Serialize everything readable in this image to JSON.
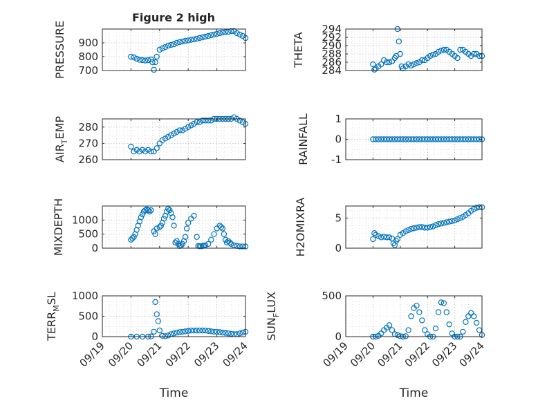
{
  "figure_title": "Figure 2 high",
  "x_axis": {
    "label": "Time",
    "ticks": [
      "09/19",
      "09/20",
      "09/21",
      "09/22",
      "09/23",
      "09/24"
    ],
    "tick_values": [
      0,
      1,
      2,
      3,
      4,
      5
    ],
    "range": [
      0,
      5
    ],
    "unit": "days from 09/19"
  },
  "marker_color": "#0072bd",
  "chart_data": [
    {
      "type": "scatter",
      "ylabel": "PRESSURE",
      "yticks": [
        "700",
        "800",
        "900"
      ],
      "ytick_values": [
        700,
        800,
        900
      ],
      "ylim": [
        700,
        1000
      ],
      "x": [
        1.0,
        1.1,
        1.2,
        1.3,
        1.4,
        1.5,
        1.6,
        1.7,
        1.75,
        1.8,
        1.85,
        1.9,
        2.0,
        2.1,
        2.2,
        2.3,
        2.4,
        2.5,
        2.6,
        2.7,
        2.8,
        2.9,
        3.0,
        3.1,
        3.2,
        3.3,
        3.4,
        3.5,
        3.6,
        3.7,
        3.8,
        3.9,
        4.0,
        4.1,
        4.2,
        4.3,
        4.4,
        4.5,
        4.6,
        4.7,
        4.8,
        4.9,
        5.0
      ],
      "y": [
        800,
        795,
        785,
        778,
        775,
        772,
        775,
        780,
        760,
        705,
        760,
        800,
        850,
        860,
        870,
        880,
        885,
        890,
        900,
        905,
        910,
        915,
        918,
        922,
        925,
        930,
        935,
        940,
        945,
        950,
        955,
        960,
        965,
        970,
        975,
        978,
        980,
        985,
        985,
        970,
        960,
        950,
        935
      ]
    },
    {
      "type": "scatter",
      "ylabel": "THETA",
      "yticks": [
        "284",
        "286",
        "288",
        "290",
        "292",
        "294"
      ],
      "ytick_values": [
        284,
        286,
        288,
        290,
        292,
        294
      ],
      "ylim": [
        284,
        294
      ],
      "x": [
        1.0,
        1.05,
        1.1,
        1.2,
        1.3,
        1.4,
        1.5,
        1.6,
        1.7,
        1.8,
        1.85,
        1.9,
        1.95,
        2.0,
        2.05,
        2.1,
        2.2,
        2.3,
        2.4,
        2.5,
        2.6,
        2.7,
        2.8,
        2.9,
        3.0,
        3.1,
        3.2,
        3.3,
        3.4,
        3.5,
        3.6,
        3.7,
        3.8,
        3.9,
        4.0,
        4.1,
        4.2,
        4.3,
        4.4,
        4.5,
        4.6,
        4.7,
        4.8,
        4.9,
        5.0
      ],
      "y": [
        285.5,
        284.2,
        284.5,
        285,
        285.5,
        286.5,
        286,
        286,
        286.2,
        287,
        287.5,
        294,
        291,
        288,
        285,
        284.5,
        285,
        285.5,
        285.2,
        285.5,
        285.8,
        286,
        286.5,
        286.5,
        287,
        287.5,
        287.8,
        288,
        288.5,
        288.8,
        289,
        289,
        288.5,
        288,
        287.5,
        287,
        289,
        289,
        288.5,
        288,
        287.5,
        288,
        288,
        287.5,
        287.5
      ]
    },
    {
      "type": "scatter",
      "ylabel": "AIR_TEMP",
      "yticks": [
        "260",
        "270",
        "280"
      ],
      "ytick_values": [
        260,
        270,
        280
      ],
      "ylim": [
        260,
        285
      ],
      "x": [
        1.0,
        1.1,
        1.2,
        1.3,
        1.4,
        1.5,
        1.6,
        1.7,
        1.8,
        1.9,
        2.0,
        2.1,
        2.2,
        2.3,
        2.4,
        2.5,
        2.6,
        2.7,
        2.8,
        2.9,
        3.0,
        3.1,
        3.2,
        3.3,
        3.4,
        3.5,
        3.6,
        3.7,
        3.8,
        3.9,
        4.0,
        4.1,
        4.2,
        4.3,
        4.4,
        4.5,
        4.6,
        4.7,
        4.8,
        4.9,
        5.0
      ],
      "y": [
        268,
        265,
        266,
        265,
        266,
        265,
        266,
        265,
        265,
        267,
        270,
        272,
        273,
        274,
        275,
        276,
        277,
        278,
        278,
        279,
        280,
        281,
        282,
        283,
        283,
        284,
        284,
        284,
        284,
        285,
        285,
        285,
        285,
        285,
        285,
        285,
        286,
        285,
        284,
        283,
        282
      ]
    },
    {
      "type": "scatter",
      "ylabel": "RAINFALL",
      "yticks": [
        "-1",
        "0",
        "1"
      ],
      "ytick_values": [
        -1,
        0,
        1
      ],
      "ylim": [
        -1,
        1
      ],
      "x": [
        1.0,
        1.1,
        1.2,
        1.3,
        1.4,
        1.5,
        1.6,
        1.7,
        1.8,
        1.9,
        2.0,
        2.1,
        2.2,
        2.3,
        2.4,
        2.5,
        2.6,
        2.7,
        2.8,
        2.9,
        3.0,
        3.1,
        3.2,
        3.3,
        3.4,
        3.5,
        3.6,
        3.7,
        3.8,
        3.9,
        4.0,
        4.1,
        4.2,
        4.3,
        4.4,
        4.5,
        4.6,
        4.7,
        4.8,
        4.9,
        5.0
      ],
      "y": [
        0,
        0,
        0,
        0,
        0,
        0,
        0,
        0,
        0,
        0,
        0,
        0,
        0,
        0,
        0,
        0,
        0,
        0,
        0,
        0,
        0,
        0,
        0,
        0,
        0,
        0,
        0,
        0,
        0,
        0,
        0,
        0,
        0,
        0,
        0,
        0,
        0,
        0,
        0,
        0,
        0
      ]
    },
    {
      "type": "scatter",
      "ylabel": "MIXDEPTH",
      "yticks": [
        "0",
        "500",
        "1000"
      ],
      "ytick_values": [
        0,
        500,
        1000
      ],
      "ylim": [
        0,
        1500
      ],
      "x": [
        1.0,
        1.05,
        1.1,
        1.15,
        1.2,
        1.25,
        1.3,
        1.35,
        1.4,
        1.45,
        1.5,
        1.55,
        1.6,
        1.65,
        1.7,
        1.8,
        1.85,
        1.9,
        2.0,
        2.05,
        2.1,
        2.15,
        2.2,
        2.25,
        2.3,
        2.35,
        2.4,
        2.45,
        2.5,
        2.55,
        2.6,
        2.65,
        2.7,
        2.75,
        2.8,
        2.85,
        2.9,
        2.95,
        3.0,
        3.1,
        3.2,
        3.3,
        3.35,
        3.4,
        3.45,
        3.5,
        3.55,
        3.6,
        3.7,
        3.8,
        3.9,
        4.0,
        4.1,
        4.15,
        4.2,
        4.25,
        4.3,
        4.35,
        4.4,
        4.45,
        4.5,
        4.6,
        4.7,
        4.8,
        4.9,
        5.0
      ],
      "y": [
        300,
        350,
        400,
        500,
        650,
        800,
        950,
        1100,
        1200,
        1300,
        1350,
        1380,
        1350,
        1300,
        1350,
        600,
        500,
        700,
        750,
        800,
        900,
        1050,
        1150,
        1300,
        1400,
        1350,
        1250,
        1100,
        800,
        200,
        250,
        150,
        80,
        100,
        150,
        250,
        400,
        700,
        900,
        1050,
        1150,
        400,
        80,
        70,
        70,
        80,
        90,
        100,
        150,
        300,
        500,
        700,
        800,
        750,
        700,
        500,
        300,
        200,
        250,
        200,
        150,
        100,
        80,
        60,
        60,
        60
      ]
    },
    {
      "type": "scatter",
      "ylabel": "H2OMIXRA",
      "yticks": [
        "0",
        "5"
      ],
      "ytick_values": [
        0,
        5
      ],
      "ylim": [
        0,
        7
      ],
      "x": [
        1.0,
        1.05,
        1.1,
        1.2,
        1.3,
        1.4,
        1.5,
        1.6,
        1.7,
        1.75,
        1.8,
        1.85,
        1.9,
        2.0,
        2.1,
        2.2,
        2.3,
        2.4,
        2.5,
        2.6,
        2.7,
        2.8,
        2.9,
        3.0,
        3.1,
        3.2,
        3.3,
        3.4,
        3.5,
        3.6,
        3.7,
        3.8,
        3.9,
        4.0,
        4.1,
        4.2,
        4.3,
        4.4,
        4.5,
        4.6,
        4.7,
        4.8,
        4.9,
        5.0
      ],
      "y": [
        1.5,
        2.5,
        2.2,
        2.0,
        1.8,
        1.9,
        1.8,
        1.8,
        1.6,
        0.8,
        0.5,
        1.2,
        1.5,
        2.2,
        2.5,
        2.8,
        3.0,
        3.2,
        3.3,
        3.4,
        3.5,
        3.5,
        3.4,
        3.4,
        3.5,
        3.6,
        3.8,
        4.0,
        4.1,
        4.2,
        4.3,
        4.4,
        4.5,
        4.6,
        4.8,
        5.0,
        5.2,
        5.5,
        5.8,
        6.2,
        6.5,
        6.7,
        6.8,
        6.8
      ]
    },
    {
      "type": "scatter",
      "ylabel": "TERR_MSL",
      "yticks": [
        "0",
        "500",
        "1000"
      ],
      "ytick_values": [
        0,
        500,
        1000
      ],
      "ylim": [
        0,
        1000
      ],
      "x": [
        1.0,
        1.2,
        1.4,
        1.6,
        1.7,
        1.8,
        1.85,
        1.9,
        1.95,
        2.0,
        2.1,
        2.2,
        2.3,
        2.4,
        2.5,
        2.6,
        2.7,
        2.8,
        2.9,
        3.0,
        3.1,
        3.2,
        3.3,
        3.4,
        3.5,
        3.6,
        3.7,
        3.8,
        3.9,
        4.0,
        4.1,
        4.2,
        4.3,
        4.4,
        4.5,
        4.6,
        4.7,
        4.8,
        4.9,
        5.0
      ],
      "y": [
        0,
        0,
        0,
        0,
        5,
        120,
        850,
        550,
        380,
        150,
        20,
        10,
        30,
        60,
        80,
        100,
        110,
        120,
        130,
        140,
        150,
        150,
        150,
        150,
        150,
        150,
        140,
        130,
        120,
        120,
        110,
        100,
        90,
        80,
        70,
        60,
        60,
        80,
        100,
        120
      ]
    },
    {
      "type": "scatter",
      "ylabel": "SUN_FLUX",
      "yticks": [
        "0",
        "500"
      ],
      "ytick_values": [
        0,
        500
      ],
      "ylim": [
        0,
        500
      ],
      "x": [
        1.0,
        1.1,
        1.2,
        1.3,
        1.4,
        1.5,
        1.6,
        1.7,
        1.8,
        1.9,
        2.0,
        2.1,
        2.2,
        2.3,
        2.4,
        2.5,
        2.6,
        2.7,
        2.8,
        2.9,
        3.0,
        3.1,
        3.2,
        3.3,
        3.4,
        3.5,
        3.6,
        3.7,
        3.8,
        3.9,
        4.0,
        4.1,
        4.2,
        4.3,
        4.4,
        4.5,
        4.6,
        4.7,
        4.8,
        4.9,
        5.0
      ],
      "y": [
        0,
        0,
        10,
        40,
        80,
        110,
        140,
        80,
        30,
        20,
        5,
        0,
        5,
        80,
        250,
        350,
        380,
        300,
        200,
        80,
        30,
        0,
        0,
        100,
        300,
        420,
        410,
        300,
        150,
        40,
        0,
        0,
        0,
        60,
        180,
        250,
        290,
        250,
        170,
        80,
        20
      ]
    }
  ]
}
